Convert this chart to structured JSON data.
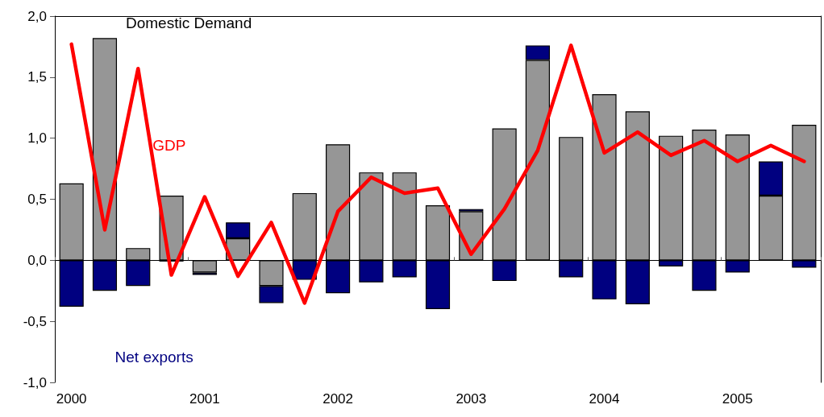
{
  "chart_data": {
    "type": "bar",
    "stacked": true,
    "categories": [
      "2000",
      null,
      null,
      null,
      "2001",
      null,
      null,
      null,
      "2002",
      null,
      null,
      null,
      "2003",
      null,
      null,
      null,
      "2004",
      null,
      null,
      null,
      "2005",
      null,
      null
    ],
    "series": [
      {
        "name": "Domestic Demand",
        "color": "#969696",
        "values": [
          0.63,
          1.82,
          0.1,
          0.53,
          -0.1,
          0.18,
          -0.21,
          0.55,
          0.95,
          0.72,
          0.72,
          0.45,
          0.4,
          1.08,
          1.64,
          1.01,
          1.36,
          1.22,
          1.02,
          1.07,
          1.03,
          0.53,
          1.11
        ]
      },
      {
        "name": "Net exports",
        "color": "#000080",
        "values": [
          -0.38,
          -0.25,
          -0.21,
          -0.01,
          -0.02,
          0.13,
          -0.14,
          -0.16,
          -0.27,
          -0.18,
          -0.14,
          -0.4,
          0.02,
          -0.17,
          0.12,
          -0.14,
          -0.32,
          -0.36,
          -0.05,
          -0.25,
          -0.1,
          0.28,
          -0.06
        ]
      },
      {
        "name": "GDP",
        "type": "line",
        "color": "#ff0000",
        "values": [
          1.77,
          0.25,
          1.57,
          -0.12,
          0.52,
          -0.13,
          0.31,
          -0.35,
          0.4,
          0.68,
          0.55,
          0.59,
          0.05,
          0.42,
          0.9,
          1.76,
          0.88,
          1.05,
          0.86,
          0.98,
          0.81,
          0.94,
          0.81
        ]
      }
    ],
    "ylim": [
      -1,
      2
    ],
    "yticks": [
      {
        "value": -1,
        "label": "-1,0"
      },
      {
        "value": -0.5,
        "label": "-0,5"
      },
      {
        "value": 0,
        "label": "0,0"
      },
      {
        "value": 0.5,
        "label": "0,5"
      },
      {
        "value": 1,
        "label": "1,0"
      },
      {
        "value": 1.5,
        "label": "1,5"
      },
      {
        "value": 2,
        "label": "2,0"
      }
    ],
    "legend": false,
    "marker": "none",
    "line_style": "solid"
  }
}
